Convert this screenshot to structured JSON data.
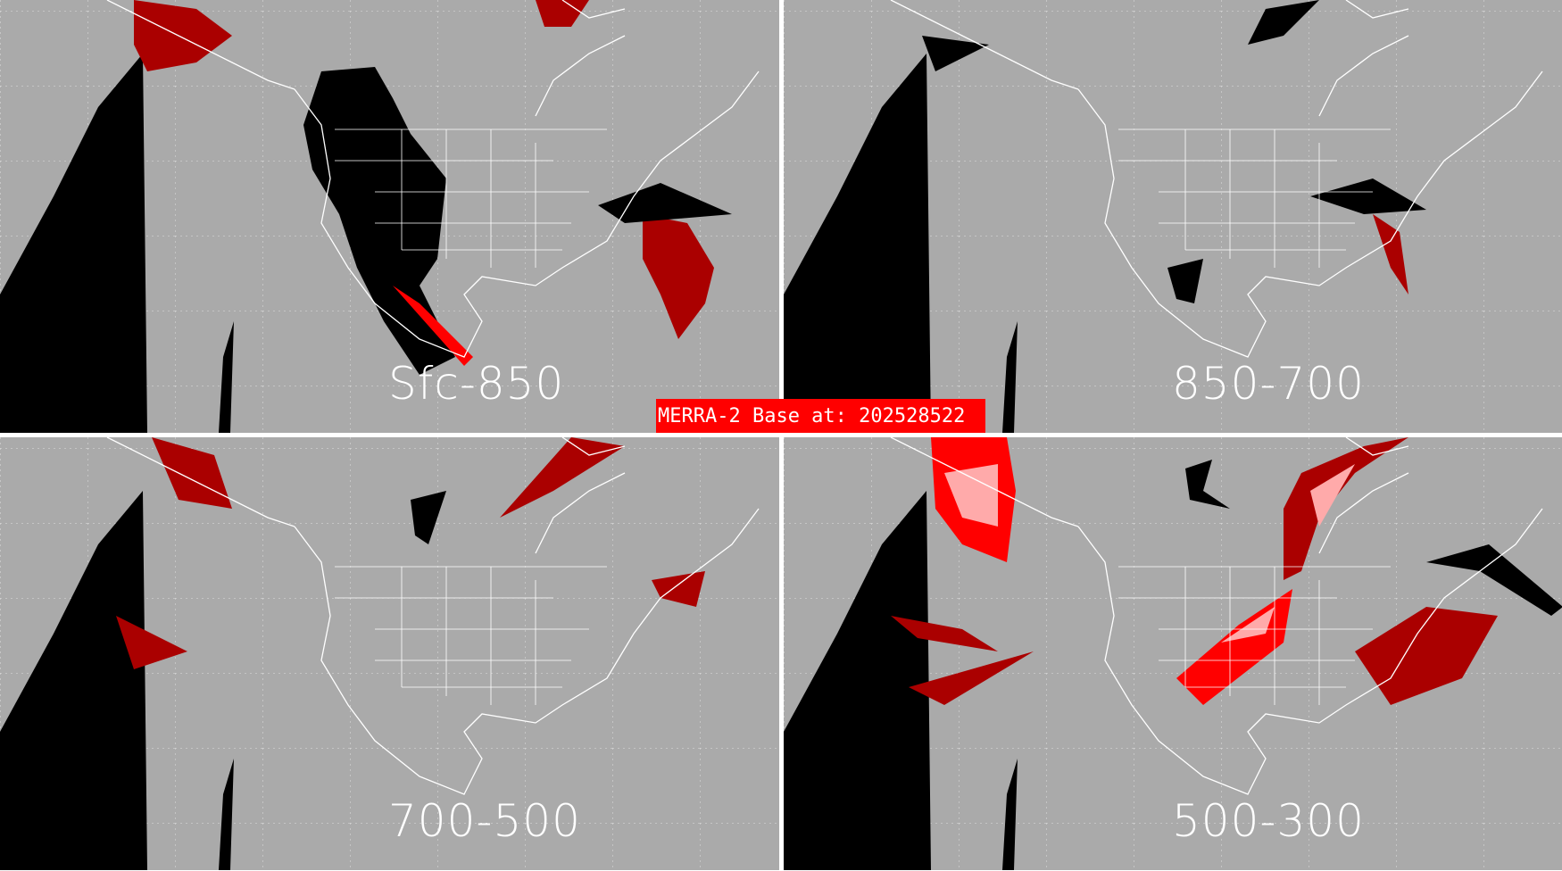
{
  "banner": {
    "text": "MERRA-2 Base at: 202528522",
    "color": "#ff0000"
  },
  "panels": [
    {
      "label": "Sfc-850"
    },
    {
      "label": "850-700"
    },
    {
      "label": "700-500"
    },
    {
      "label": "500-300"
    }
  ],
  "colors": {
    "background": "#aaaaaa",
    "no_data": "#000000",
    "dark_red": "#aa0000",
    "red": "#ff0000",
    "pink": "#ffaaaa",
    "outlines": "#ffffff"
  }
}
